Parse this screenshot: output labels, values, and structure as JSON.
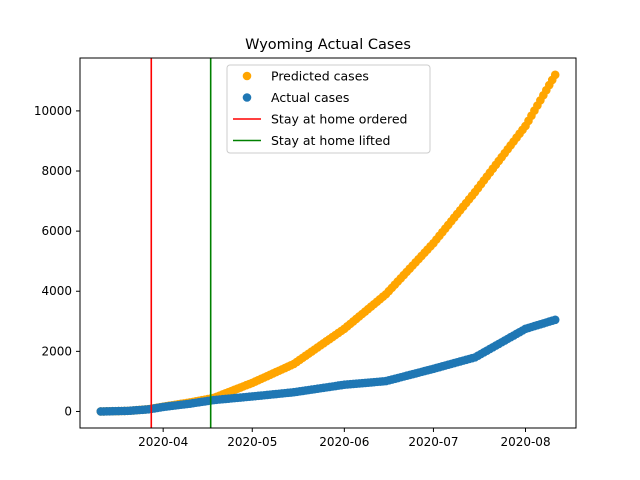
{
  "chart_data": {
    "type": "scatter",
    "title": "Wyoming Actual Cases",
    "xlabel": "",
    "ylabel": "",
    "x_start": "2020-03-11",
    "x_end": "2020-08-11",
    "xlim": [
      "2020-03-04",
      "2020-08-18"
    ],
    "ylim": [
      -550,
      11760
    ],
    "x_ticks": [
      {
        "date": "2020-04-01",
        "label": "2020-04"
      },
      {
        "date": "2020-05-01",
        "label": "2020-05"
      },
      {
        "date": "2020-06-01",
        "label": "2020-06"
      },
      {
        "date": "2020-07-01",
        "label": "2020-07"
      },
      {
        "date": "2020-08-01",
        "label": "2020-08"
      }
    ],
    "y_ticks": [
      {
        "value": 0,
        "label": "0"
      },
      {
        "value": 2000,
        "label": "2000"
      },
      {
        "value": 4000,
        "label": "4000"
      },
      {
        "value": 6000,
        "label": "6000"
      },
      {
        "value": 8000,
        "label": "8000"
      },
      {
        "value": 10000,
        "label": "10000"
      }
    ],
    "series": [
      {
        "name": "Predicted cases",
        "color": "#ffa500",
        "marker": "circle",
        "points": [
          [
            "2020-03-11",
            0
          ],
          [
            "2020-03-20",
            20
          ],
          [
            "2020-03-27",
            75
          ],
          [
            "2020-04-01",
            160
          ],
          [
            "2020-04-10",
            300
          ],
          [
            "2020-04-18",
            450
          ],
          [
            "2020-05-01",
            950
          ],
          [
            "2020-05-15",
            1580
          ],
          [
            "2020-06-01",
            2750
          ],
          [
            "2020-06-15",
            3900
          ],
          [
            "2020-07-01",
            5600
          ],
          [
            "2020-07-15",
            7300
          ],
          [
            "2020-08-01",
            9500
          ],
          [
            "2020-08-11",
            11200
          ]
        ]
      },
      {
        "name": "Actual cases",
        "color": "#1f77b4",
        "marker": "circle",
        "points": [
          [
            "2020-03-11",
            0
          ],
          [
            "2020-03-20",
            20
          ],
          [
            "2020-03-27",
            70
          ],
          [
            "2020-04-01",
            150
          ],
          [
            "2020-04-10",
            260
          ],
          [
            "2020-04-18",
            380
          ],
          [
            "2020-05-01",
            500
          ],
          [
            "2020-05-15",
            640
          ],
          [
            "2020-06-01",
            890
          ],
          [
            "2020-06-15",
            1010
          ],
          [
            "2020-07-01",
            1420
          ],
          [
            "2020-07-15",
            1800
          ],
          [
            "2020-08-01",
            2750
          ],
          [
            "2020-08-11",
            3050
          ]
        ]
      }
    ],
    "vlines": [
      {
        "name": "Stay at home ordered",
        "date": "2020-03-28",
        "color": "#ff0000"
      },
      {
        "name": "Stay at home lifted",
        "date": "2020-04-17",
        "color": "#008000"
      }
    ],
    "legend_placement": "upper-center",
    "grid": false
  }
}
